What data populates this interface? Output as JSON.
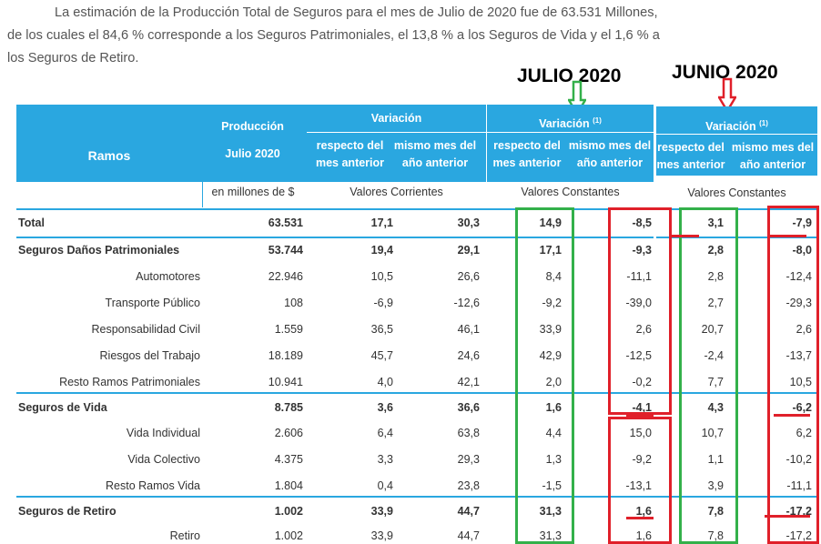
{
  "intro": {
    "line1": "La estimación de la Producción Total de Seguros para el mes de Julio de 2020 fue de 63.531 Millones,",
    "line2": "de los cuales el 84,6 % corresponde a los Seguros Patrimoniales, el 13,8 % a los Seguros de Vida y el 1,6 % a",
    "line3": "los Seguros de Retiro."
  },
  "annotations": {
    "julio": "JULIO 2020",
    "junio": "JUNIO 2020"
  },
  "header": {
    "ramos": "Ramos",
    "produccion": "Producción",
    "julio": "Julio 2020",
    "variacion": "Variación",
    "variacion_sup": "(1)",
    "respecto_1": "respecto del",
    "respecto_2": "mes anterior",
    "mismo_1": "mismo mes del",
    "mismo_2": "año anterior",
    "unidad": "en millones de $",
    "corrientes": "Valores Corrientes",
    "constantes": "Valores Constantes"
  },
  "rows": [
    {
      "name": "Total",
      "bold": true,
      "prod": "63.531",
      "c1": "17,1",
      "c2": "30,3",
      "k1": "14,9",
      "k2": "-8,5",
      "j1": "3,1",
      "j2": "-7,9"
    },
    {
      "name": "Seguros Daños Patrimoniales",
      "bold": true,
      "prod": "53.744",
      "c1": "19,4",
      "c2": "29,1",
      "k1": "17,1",
      "k2": "-9,3",
      "j1": "2,8",
      "j2": "-8,0"
    },
    {
      "name": "Automotores",
      "bold": false,
      "prod": "22.946",
      "c1": "10,5",
      "c2": "26,6",
      "k1": "8,4",
      "k2": "-11,1",
      "j1": "2,8",
      "j2": "-12,4"
    },
    {
      "name": "Transporte Público",
      "bold": false,
      "prod": "108",
      "c1": "-6,9",
      "c2": "-12,6",
      "k1": "-9,2",
      "k2": "-39,0",
      "j1": "2,7",
      "j2": "-29,3"
    },
    {
      "name": "Responsabilidad Civil",
      "bold": false,
      "prod": "1.559",
      "c1": "36,5",
      "c2": "46,1",
      "k1": "33,9",
      "k2": "2,6",
      "j1": "20,7",
      "j2": "2,6"
    },
    {
      "name": "Riesgos del Trabajo",
      "bold": false,
      "prod": "18.189",
      "c1": "45,7",
      "c2": "24,6",
      "k1": "42,9",
      "k2": "-12,5",
      "j1": "-2,4",
      "j2": "-13,7"
    },
    {
      "name": "Resto Ramos Patrimoniales",
      "bold": false,
      "prod": "10.941",
      "c1": "4,0",
      "c2": "42,1",
      "k1": "2,0",
      "k2": "-0,2",
      "j1": "7,7",
      "j2": "10,5"
    },
    {
      "name": "Seguros de Vida",
      "bold": true,
      "prod": "8.785",
      "c1": "3,6",
      "c2": "36,6",
      "k1": "1,6",
      "k2": "-4,1",
      "j1": "4,3",
      "j2": "-6,2"
    },
    {
      "name": "Vida Individual",
      "bold": false,
      "prod": "2.606",
      "c1": "6,4",
      "c2": "63,8",
      "k1": "4,4",
      "k2": "15,0",
      "j1": "10,7",
      "j2": "6,2"
    },
    {
      "name": "Vida Colectivo",
      "bold": false,
      "prod": "4.375",
      "c1": "3,3",
      "c2": "29,3",
      "k1": "1,3",
      "k2": "-9,2",
      "j1": "1,1",
      "j2": "-10,2"
    },
    {
      "name": "Resto Ramos Vida",
      "bold": false,
      "prod": "1.804",
      "c1": "0,4",
      "c2": "23,8",
      "k1": "-1,5",
      "k2": "-13,1",
      "j1": "3,9",
      "j2": "-11,1"
    },
    {
      "name": "Seguros de Retiro",
      "bold": true,
      "prod": "1.002",
      "c1": "33,9",
      "c2": "44,7",
      "k1": "31,3",
      "k2": "1,6",
      "j1": "7,8",
      "j2": "-17,2"
    },
    {
      "name": "Retiro",
      "bold": false,
      "prod": "1.002",
      "c1": "33,9",
      "c2": "44,7",
      "k1": "31,3",
      "k2": "1,6",
      "j1": "7,8",
      "j2": "-17,2"
    }
  ]
}
